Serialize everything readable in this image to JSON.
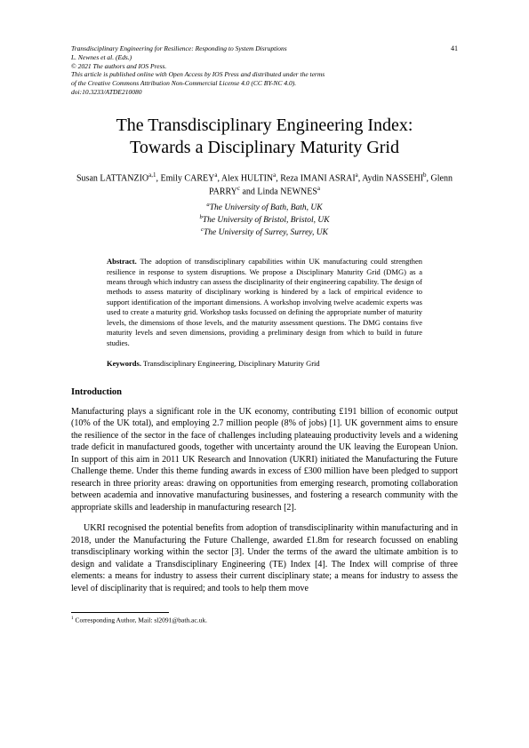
{
  "header": {
    "line1": "Transdisciplinary Engineering for Resilience: Responding to System Disruptions",
    "line2": "L. Newnes et al. (Eds.)",
    "line3": "© 2021 The authors and IOS Press.",
    "line4": "This article is published online with Open Access by IOS Press and distributed under the terms",
    "line5": "of the Creative Commons Attribution Non-Commercial License 4.0 (CC BY-NC 4.0).",
    "line6": "doi:10.3233/ATDE210080",
    "page_number": "41"
  },
  "title": {
    "line1": "The Transdisciplinary Engineering Index:",
    "line2": "Towards a Disciplinary Maturity Grid"
  },
  "authors_html": "Susan LATTANZIO<sup>a,1</sup>, Emily CAREY<sup>a</sup>, Alex HULTIN<sup>a</sup>, Reza IMANI ASRAI<sup>a</sup>, Aydin NASSEHI<sup>b</sup>, Glenn PARRY<sup>c</sup> and Linda NEWNES<sup>a</sup>",
  "affiliations": {
    "a": "The University of Bath, Bath, UK",
    "b": "The University of Bristol, Bristol, UK",
    "c": "The University of Surrey, Surrey, UK"
  },
  "abstract": {
    "label": "Abstract.",
    "text": "The adoption of transdisciplinary capabilities within UK manufacturing could strengthen resilience in response to system disruptions. We propose a Disciplinary Maturity Grid (DMG) as a means through which industry can assess the disciplinarity of their engineering capability. The design of methods to assess maturity of disciplinary working is hindered by a lack of empirical evidence to support identification of the important dimensions. A workshop involving twelve academic experts was used to create a maturity grid. Workshop tasks focussed on defining the appropriate number of maturity levels, the dimensions of those levels, and the maturity assessment questions. The DMG contains five maturity levels and seven dimensions, providing a preliminary design from which to build in future studies."
  },
  "keywords": {
    "label": "Keywords.",
    "text": "Transdisciplinary Engineering, Disciplinary Maturity Grid"
  },
  "section_heading": "Introduction",
  "body": {
    "p1": "Manufacturing plays a significant role in the UK economy, contributing £191 billion of economic output (10% of the UK total), and employing 2.7 million people (8% of jobs) [1]. UK government aims to ensure the resilience of the sector in the face of challenges including plateauing productivity levels and a widening trade deficit in manufactured goods, together with uncertainty around the UK leaving the European Union. In support of this aim in 2011 UK Research and Innovation (UKRI) initiated the Manufacturing the Future Challenge theme. Under this theme funding awards in excess of £300 million have been pledged to support research in three priority areas: drawing on opportunities from emerging research, promoting collaboration between academia and innovative manufacturing businesses, and fostering a research community with the appropriate skills and leadership in manufacturing research [2].",
    "p2": "UKRI recognised the potential benefits from adoption of transdisciplinarity within manufacturing and in 2018, under the Manufacturing the Future Challenge, awarded £1.8m for research focussed on enabling transdisciplinary working within the sector [3]. Under the terms of the award the ultimate ambition is to design and validate a Transdisciplinary Engineering (TE) Index [4]. The Index will comprise of three elements: a means for industry to assess their current disciplinary state; a means for industry to assess the level of disciplinarity that is required; and tools to help them move"
  },
  "footnote": {
    "marker": "1",
    "text": "Corresponding Author, Mail: sl2091@bath.ac.uk."
  }
}
